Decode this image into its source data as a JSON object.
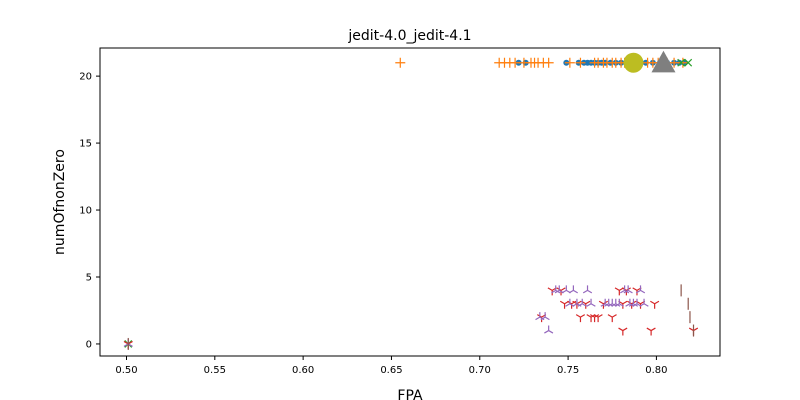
{
  "chart_data": {
    "type": "scatter",
    "title": "jedit-4.0_jedit-4.1",
    "xlabel": "FPA",
    "ylabel": "numOfnonZero",
    "xlim": [
      0.485,
      0.836
    ],
    "ylim": [
      -0.9,
      22.1
    ],
    "xticks": [
      "0.50",
      "0.55",
      "0.60",
      "0.65",
      "0.70",
      "0.75",
      "0.80"
    ],
    "yticks": [
      "0",
      "5",
      "10",
      "15",
      "20"
    ],
    "grid": false,
    "series": [
      {
        "marker": "circle",
        "color": "#1f77b4",
        "points": [
          [
            0.722,
            21
          ],
          [
            0.726,
            21
          ],
          [
            0.749,
            21
          ],
          [
            0.756,
            21
          ],
          [
            0.759,
            21
          ],
          [
            0.761,
            21
          ],
          [
            0.763,
            21
          ],
          [
            0.765,
            21
          ],
          [
            0.767,
            21
          ],
          [
            0.769,
            21
          ],
          [
            0.771,
            21
          ],
          [
            0.774,
            21
          ],
          [
            0.777,
            21
          ],
          [
            0.78,
            21
          ],
          [
            0.783,
            21
          ],
          [
            0.786,
            21
          ],
          [
            0.79,
            21
          ],
          [
            0.794,
            21
          ],
          [
            0.798,
            21
          ],
          [
            0.802,
            21
          ],
          [
            0.806,
            21
          ],
          [
            0.81,
            21
          ],
          [
            0.813,
            21
          ],
          [
            0.816,
            21
          ]
        ]
      },
      {
        "marker": "plus",
        "color": "#ff7f0e",
        "points": [
          [
            0.655,
            21
          ],
          [
            0.711,
            21
          ],
          [
            0.714,
            21
          ],
          [
            0.717,
            21
          ],
          [
            0.72,
            21
          ],
          [
            0.725,
            21
          ],
          [
            0.729,
            21
          ],
          [
            0.731,
            21
          ],
          [
            0.733,
            21
          ],
          [
            0.736,
            21
          ],
          [
            0.739,
            21
          ],
          [
            0.751,
            21
          ],
          [
            0.757,
            21
          ],
          [
            0.765,
            21
          ],
          [
            0.767,
            21
          ],
          [
            0.77,
            21
          ],
          [
            0.772,
            21
          ],
          [
            0.775,
            21
          ],
          [
            0.777,
            21
          ],
          [
            0.78,
            21
          ],
          [
            0.782,
            21
          ],
          [
            0.785,
            21
          ],
          [
            0.795,
            21
          ],
          [
            0.798,
            21
          ],
          [
            0.801,
            21
          ],
          [
            0.806,
            21
          ],
          [
            0.81,
            21
          ],
          [
            0.815,
            21
          ]
        ]
      },
      {
        "marker": "x",
        "color": "#2ca02c",
        "points": [
          [
            0.501,
            0
          ],
          [
            0.814,
            21
          ],
          [
            0.818,
            21
          ]
        ]
      },
      {
        "marker": "tri_down",
        "color": "#d62728",
        "points": [
          [
            0.501,
            0
          ],
          [
            0.735,
            2
          ],
          [
            0.741,
            4
          ],
          [
            0.746,
            4
          ],
          [
            0.748,
            3
          ],
          [
            0.752,
            3
          ],
          [
            0.755,
            3
          ],
          [
            0.757,
            2
          ],
          [
            0.76,
            3
          ],
          [
            0.763,
            2
          ],
          [
            0.765,
            2
          ],
          [
            0.767,
            2
          ],
          [
            0.77,
            3
          ],
          [
            0.775,
            2
          ],
          [
            0.779,
            4
          ],
          [
            0.781,
            3
          ],
          [
            0.781,
            1
          ],
          [
            0.783,
            4
          ],
          [
            0.786,
            3
          ],
          [
            0.789,
            4
          ],
          [
            0.791,
            3
          ],
          [
            0.797,
            1
          ],
          [
            0.799,
            3
          ],
          [
            0.821,
            1
          ]
        ]
      },
      {
        "marker": "tri_up",
        "color": "#9467bd",
        "points": [
          [
            0.501,
            0
          ],
          [
            0.734,
            2
          ],
          [
            0.737,
            2
          ],
          [
            0.739,
            1
          ],
          [
            0.743,
            4
          ],
          [
            0.745,
            4
          ],
          [
            0.749,
            4
          ],
          [
            0.751,
            3
          ],
          [
            0.753,
            4
          ],
          [
            0.755,
            3
          ],
          [
            0.758,
            3
          ],
          [
            0.761,
            4
          ],
          [
            0.763,
            3
          ],
          [
            0.771,
            3
          ],
          [
            0.773,
            3
          ],
          [
            0.775,
            3
          ],
          [
            0.777,
            3
          ],
          [
            0.779,
            3
          ],
          [
            0.782,
            4
          ],
          [
            0.784,
            4
          ],
          [
            0.785,
            3
          ],
          [
            0.787,
            3
          ],
          [
            0.789,
            3
          ],
          [
            0.791,
            4
          ],
          [
            0.793,
            3
          ]
        ]
      },
      {
        "marker": "vline",
        "color": "#8c564b",
        "points": [
          [
            0.501,
            0
          ],
          [
            0.814,
            4
          ],
          [
            0.818,
            3
          ],
          [
            0.819,
            2
          ],
          [
            0.821,
            1
          ]
        ]
      },
      {
        "marker": "circle",
        "color": "#bcbd22",
        "size": "large",
        "points": [
          [
            0.787,
            21
          ]
        ]
      },
      {
        "marker": "triangle",
        "color": "#7f7f7f",
        "size": "large",
        "points": [
          [
            0.804,
            21
          ]
        ]
      }
    ]
  }
}
